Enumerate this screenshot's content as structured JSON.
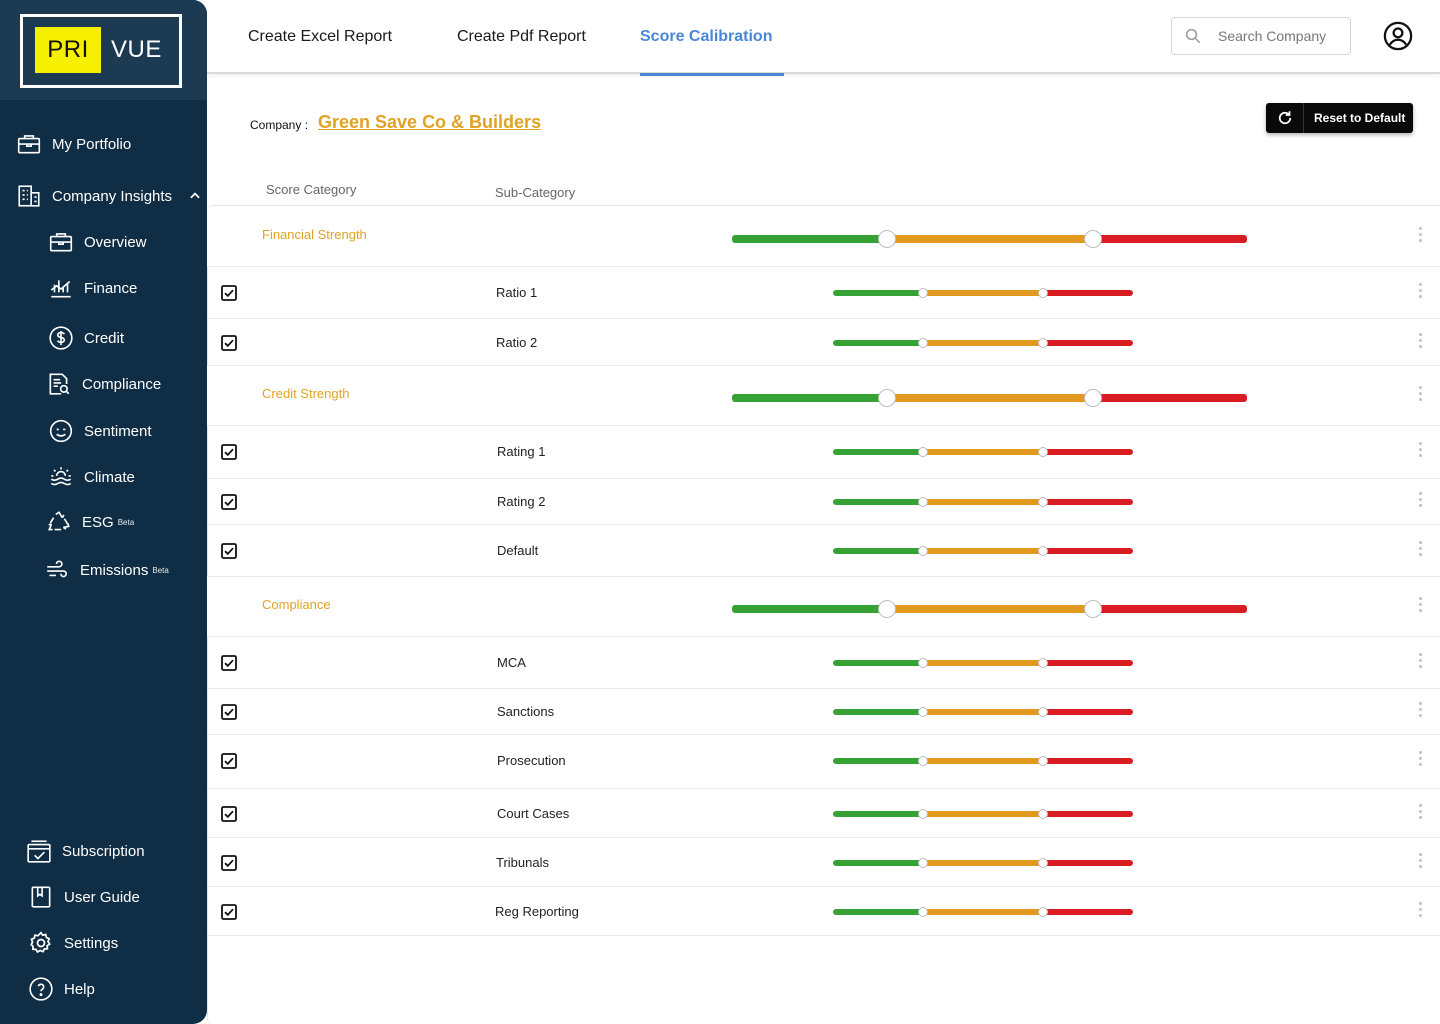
{
  "logo": {
    "part1": "PRI",
    "part2": "VUE"
  },
  "sidebar": {
    "top_items": [
      {
        "label": "My Portfolio",
        "icon": "briefcase-icon"
      },
      {
        "label": "Company Insights",
        "icon": "building-icon",
        "expanded": true
      }
    ],
    "sub_items": [
      {
        "label": "Overview",
        "icon": "briefcase-icon"
      },
      {
        "label": "Finance",
        "icon": "finance-chart-icon"
      },
      {
        "label": "Credit",
        "icon": "dollar-circle-icon"
      },
      {
        "label": "Compliance",
        "icon": "document-search-icon"
      },
      {
        "label": "Sentiment",
        "icon": "smiley-icon"
      },
      {
        "label": "Climate",
        "icon": "climate-icon"
      },
      {
        "label": "ESG",
        "icon": "recycle-icon",
        "badge": "Beta"
      },
      {
        "label": "Emissions",
        "icon": "wind-icon",
        "badge": "Beta"
      }
    ],
    "bottom_items": [
      {
        "label": "Subscription",
        "icon": "calendar-check-icon"
      },
      {
        "label": "User Guide",
        "icon": "book-icon"
      },
      {
        "label": "Settings",
        "icon": "gear-icon"
      },
      {
        "label": "Help",
        "icon": "help-icon"
      }
    ]
  },
  "header": {
    "tabs": [
      {
        "label": "Create Excel Report",
        "active": false
      },
      {
        "label": "Create Pdf Report",
        "active": false
      },
      {
        "label": "Score Calibration",
        "active": true
      }
    ],
    "search": {
      "placeholder": "Search Company",
      "value": ""
    }
  },
  "company": {
    "label": "Company :",
    "name": "Green Save Co & Builders"
  },
  "reset_button": {
    "label": "Reset to Default"
  },
  "columns": {
    "category": "Score Category",
    "subcategory": "Sub-Category"
  },
  "colors": {
    "green": "#36a236",
    "orange": "#e19a1f",
    "red": "#d91c22",
    "accent": "#4a86d6",
    "category_text": "#e0a325",
    "sidebar": "#0f2d44"
  },
  "calibration": [
    {
      "category": "Financial Strength",
      "thresholds": [
        0.3,
        0.7
      ],
      "items": [
        {
          "name": "Ratio 1",
          "checked": true,
          "thresholds": [
            0.3,
            0.7
          ]
        },
        {
          "name": "Ratio 2",
          "checked": true,
          "thresholds": [
            0.3,
            0.7
          ]
        }
      ]
    },
    {
      "category": "Credit Strength",
      "thresholds": [
        0.3,
        0.7
      ],
      "items": [
        {
          "name": "Rating 1",
          "checked": true,
          "thresholds": [
            0.3,
            0.7
          ]
        },
        {
          "name": "Rating 2",
          "checked": true,
          "thresholds": [
            0.3,
            0.7
          ]
        },
        {
          "name": "Default",
          "checked": true,
          "thresholds": [
            0.3,
            0.7
          ]
        }
      ]
    },
    {
      "category": "Compliance",
      "thresholds": [
        0.3,
        0.7
      ],
      "items": [
        {
          "name": "MCA",
          "checked": true,
          "thresholds": [
            0.3,
            0.7
          ]
        },
        {
          "name": "Sanctions",
          "checked": true,
          "thresholds": [
            0.3,
            0.7
          ]
        },
        {
          "name": "Prosecution",
          "checked": true,
          "thresholds": [
            0.3,
            0.7
          ]
        },
        {
          "name": "Court Cases",
          "checked": true,
          "thresholds": [
            0.3,
            0.7
          ]
        },
        {
          "name": "Tribunals",
          "checked": true,
          "thresholds": [
            0.3,
            0.7
          ]
        },
        {
          "name": "Reg Reporting",
          "checked": true,
          "thresholds": [
            0.3,
            0.7
          ]
        }
      ]
    }
  ]
}
